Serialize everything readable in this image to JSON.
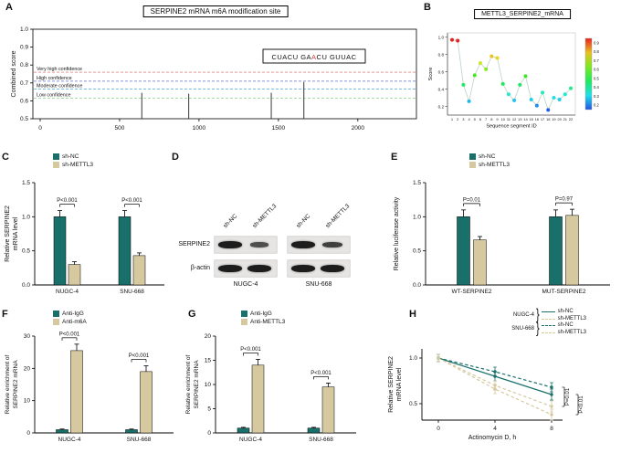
{
  "colors": {
    "teal": "#19706a",
    "tan": "#d6c9a0",
    "red": "#d43c3c",
    "connector": "#bcd3c2",
    "blot_bg": "#e6e5e3",
    "band": "#1d1d1d"
  },
  "panels": {
    "A": {
      "label": "A"
    },
    "B": {
      "label": "B"
    },
    "C": {
      "label": "C"
    },
    "D": {
      "label": "D",
      "lane_labels": [
        "sh-NC",
        "sh-METTL3",
        "sh-NC",
        "sh-METTL3"
      ],
      "row_labels": [
        "SERPINE2",
        "β-actin"
      ],
      "cell_lines": [
        "NUGC-4",
        "SNU-668"
      ],
      "serpine2_bands": [
        [
          1.0,
          0.45
        ],
        [
          1.0,
          0.6
        ]
      ],
      "actin_bands": [
        [
          1.0,
          1.0
        ],
        [
          1.0,
          1.0
        ]
      ]
    },
    "E": {
      "label": "E"
    },
    "F": {
      "label": "F"
    },
    "G": {
      "label": "G"
    },
    "H": {
      "label": "H"
    }
  },
  "chart_data": [
    {
      "panel": "A",
      "type": "line",
      "subtype": "needle",
      "title": "SERPINE2 mRNA m6A modification site",
      "ylabel": "Combined score",
      "xlim": [
        0,
        2300
      ],
      "ylim": [
        0.5,
        1.0
      ],
      "xticks": [
        0,
        500,
        1000,
        1500,
        2000
      ],
      "yticks": [
        0.5,
        0.6,
        0.7,
        0.8,
        0.9,
        1.0
      ],
      "thresholds": [
        {
          "label": "Very high confidence",
          "value": 0.76,
          "color": "#e05252"
        },
        {
          "label": "High confidence",
          "value": 0.71,
          "color": "#5b6fd6"
        },
        {
          "label": "Moderate confidence",
          "value": 0.665,
          "color": "#49a6d8"
        },
        {
          "label": "Low confidence",
          "value": 0.615,
          "color": "#6fc76f"
        }
      ],
      "sites": [
        {
          "x": 640,
          "score": 0.645
        },
        {
          "x": 935,
          "score": 0.64
        },
        {
          "x": 1455,
          "score": 0.645
        },
        {
          "x": 1660,
          "score": 0.705
        }
      ],
      "annotation_seq": {
        "pre": "CUACU GA",
        "highlight": "A",
        "post": "CU GUUAC"
      }
    },
    {
      "panel": "B",
      "type": "scatter",
      "title": "METTL3_SERPINE2_mRNA",
      "xlabel": "Sequence segment ID",
      "ylabel": "Score",
      "x": [
        1,
        2,
        3,
        4,
        5,
        6,
        7,
        8,
        9,
        10,
        11,
        12,
        13,
        14,
        15,
        16,
        17,
        18,
        19,
        20,
        21,
        22
      ],
      "values": [
        0.97,
        0.96,
        0.45,
        0.26,
        0.56,
        0.7,
        0.63,
        0.78,
        0.76,
        0.46,
        0.34,
        0.27,
        0.45,
        0.55,
        0.28,
        0.21,
        0.36,
        0.16,
        0.3,
        0.28,
        0.34,
        0.41
      ],
      "ylim": [
        0.1,
        1.05
      ],
      "yticks": [
        0.2,
        0.4,
        0.6,
        0.8,
        1.0
      ],
      "colorbar": {
        "ticks": [
          0.9,
          0.8,
          0.7,
          0.6,
          0.5,
          0.4,
          0.3,
          0.2
        ]
      }
    },
    {
      "panel": "C",
      "type": "bar",
      "categories": [
        "NUGC-4",
        "SNU-668"
      ],
      "series": [
        {
          "name": "sh-NC",
          "color": "teal",
          "values": [
            1.0,
            1.0
          ],
          "errors": [
            0.09,
            0.09
          ]
        },
        {
          "name": "sh-METTL3",
          "color": "tan",
          "values": [
            0.3,
            0.43
          ],
          "errors": [
            0.04,
            0.04
          ]
        }
      ],
      "ylabel": [
        "Relative SERPINE2",
        "mRNA level"
      ],
      "ylim": [
        0,
        1.5
      ],
      "yticks": [
        0.0,
        0.5,
        1.0,
        1.5
      ],
      "annotations": [
        "P<0.001",
        "P<0.001"
      ]
    },
    {
      "panel": "E",
      "type": "bar",
      "categories": [
        "WT-SERPINE2",
        "MUT-SERPINE2"
      ],
      "series": [
        {
          "name": "sh-NC",
          "color": "teal",
          "values": [
            1.0,
            1.0
          ],
          "errors": [
            0.1,
            0.1
          ]
        },
        {
          "name": "sh-METTL3",
          "color": "tan",
          "values": [
            0.66,
            1.02
          ],
          "errors": [
            0.05,
            0.09
          ]
        }
      ],
      "ylabel": [
        "Relative luciferase activity"
      ],
      "ylim": [
        0,
        1.5
      ],
      "yticks": [
        0.0,
        0.5,
        1.0,
        1.5
      ],
      "annotations": [
        "P=0.01",
        "P=0.97"
      ]
    },
    {
      "panel": "F",
      "type": "bar",
      "categories": [
        "NUGC-4",
        "SNU-668"
      ],
      "series": [
        {
          "name": "Anti-IgG",
          "color": "teal",
          "values": [
            1.0,
            1.0
          ],
          "errors": [
            0.2,
            0.2
          ]
        },
        {
          "name": "Anti-m6A",
          "color": "tan",
          "values": [
            25.5,
            19.0
          ],
          "errors": [
            2.0,
            1.8
          ]
        }
      ],
      "ylabel": [
        "Relative enrichment of",
        "SERPINE2 mRNA"
      ],
      "ylim": [
        0,
        30
      ],
      "yticks": [
        0,
        10,
        20,
        30
      ],
      "annotations": [
        "P<0.001",
        "P<0.001"
      ]
    },
    {
      "panel": "G",
      "type": "bar",
      "categories": [
        "NUGC-4",
        "SNU-668"
      ],
      "series": [
        {
          "name": "Anti-IgG",
          "color": "teal",
          "values": [
            1.0,
            1.0
          ],
          "errors": [
            0.15,
            0.15
          ]
        },
        {
          "name": "Anti-METTL3",
          "color": "tan",
          "values": [
            14.0,
            9.5
          ],
          "errors": [
            1.2,
            0.8
          ]
        }
      ],
      "ylabel": [
        "Relative enrichment of",
        "SERPINE2 mRNA"
      ],
      "ylim": [
        0,
        20
      ],
      "yticks": [
        0,
        5,
        10,
        15,
        20
      ],
      "annotations": [
        "P<0.001",
        "P<0.001"
      ]
    },
    {
      "panel": "H",
      "type": "line",
      "x": [
        0,
        4,
        8
      ],
      "xticks": [
        0,
        4,
        8
      ],
      "xlabel": "Actinomycin D, h",
      "ylabel": [
        "Relative SERPINE2",
        "mRNA level"
      ],
      "ylim": [
        0.32,
        1.1
      ],
      "yticks": [
        0.5,
        1.0
      ],
      "series": [
        {
          "group": "NUGC-4",
          "name": "sh-NC",
          "color": "teal",
          "dashed": false,
          "values": [
            1.0,
            0.8,
            0.6
          ],
          "errors": [
            0.04,
            0.05,
            0.06
          ]
        },
        {
          "group": "NUGC-4",
          "name": "sh-METTL3",
          "color": "tan",
          "dashed": true,
          "values": [
            1.0,
            0.66,
            0.38
          ],
          "errors": [
            0.04,
            0.05,
            0.06
          ]
        },
        {
          "group": "SNU-668",
          "name": "sh-NC",
          "color": "teal",
          "dashed": true,
          "values": [
            1.0,
            0.85,
            0.68
          ],
          "errors": [
            0.04,
            0.05,
            0.05
          ]
        },
        {
          "group": "SNU-668",
          "name": "sh-METTL3",
          "color": "tan",
          "dashed": true,
          "values": [
            1.0,
            0.7,
            0.47
          ],
          "errors": [
            0.04,
            0.05,
            0.06
          ]
        }
      ],
      "annotations": [
        "P=0.01",
        "P<0.01"
      ]
    }
  ]
}
